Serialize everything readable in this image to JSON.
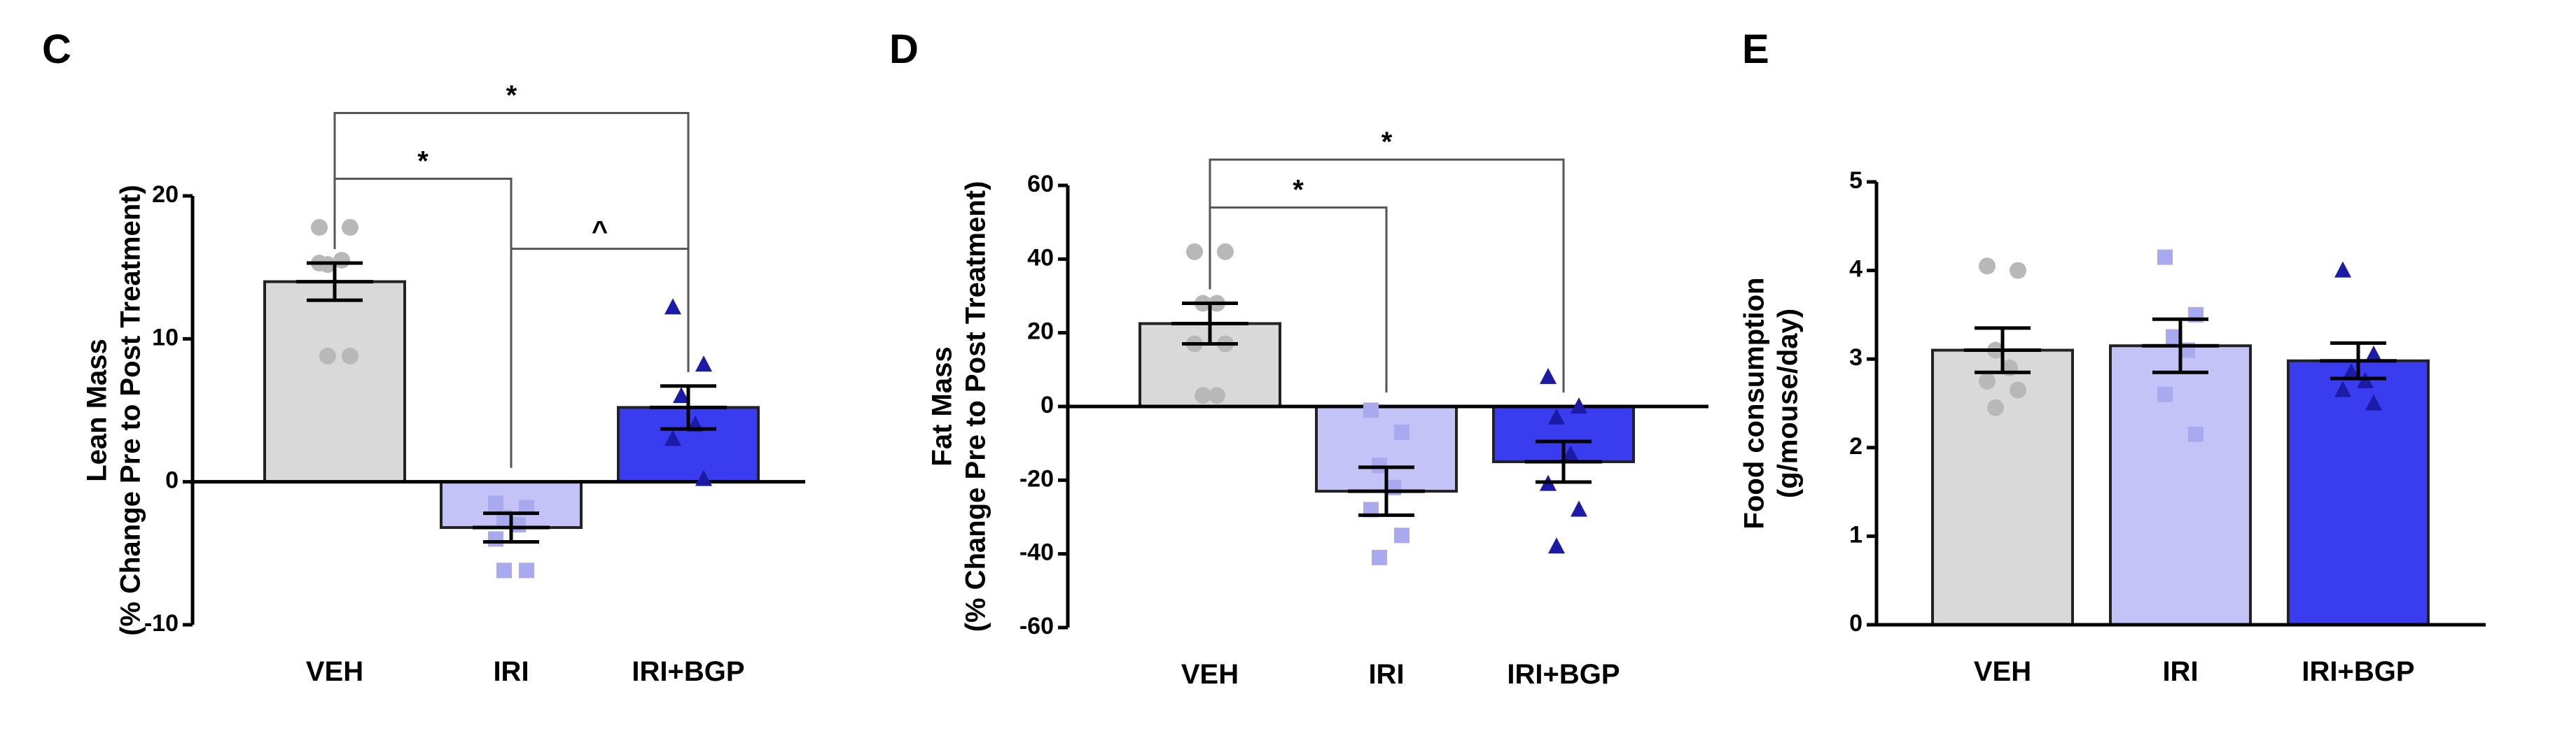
{
  "chart_data": [
    {
      "panel": "C",
      "type": "bar",
      "ylabel": [
        "Lean Mass",
        "(% Change Pre to Post Treatment)"
      ],
      "ylim": [
        -10,
        20
      ],
      "yticks": [
        -10,
        0,
        10,
        20
      ],
      "categories": [
        "VEH",
        "IRI",
        "IRI+BGP"
      ],
      "colors": [
        "#d9d9d9",
        "#c3c3f7",
        "#3a3cf0"
      ],
      "point_colors": [
        "#b8b8b8",
        "#a9a9ef",
        "#1b1ba6"
      ],
      "point_shapes": [
        "circle",
        "square",
        "triangle"
      ],
      "values": [
        14,
        -3.2,
        5.2
      ],
      "sem": [
        1.3,
        1.0,
        1.5
      ],
      "points": [
        [
          17.8,
          17.8,
          15.2,
          15.5,
          15.3,
          8.8,
          8.8
        ],
        [
          -1.5,
          -1.8,
          -2.5,
          -3.0,
          -4.0,
          -6.2,
          -6.2
        ],
        [
          12.2,
          8.2,
          6.0,
          4.0,
          3.0,
          0.2
        ]
      ],
      "brackets": [
        {
          "from": 0,
          "to": 1,
          "label": "*",
          "y": 21.2
        },
        {
          "from": 0,
          "to": 2,
          "label": "*",
          "y": 25.8
        },
        {
          "from": 1,
          "to": 2,
          "label": "^",
          "y": 16.3
        }
      ]
    },
    {
      "panel": "D",
      "type": "bar",
      "ylabel": [
        "Fat Mass",
        "(% Change Pre to Post Treatment)"
      ],
      "ylim": [
        -60,
        60
      ],
      "yticks": [
        -60,
        -40,
        -20,
        0,
        20,
        40,
        60
      ],
      "categories": [
        "VEH",
        "IRI",
        "IRI+BGP"
      ],
      "colors": [
        "#d9d9d9",
        "#c3c3f7",
        "#3a3cf0"
      ],
      "point_colors": [
        "#b8b8b8",
        "#a9a9ef",
        "#1b1ba6"
      ],
      "point_shapes": [
        "circle",
        "square",
        "triangle"
      ],
      "values": [
        22.5,
        -23,
        -15
      ],
      "sem": [
        5.5,
        6.5,
        5.5
      ],
      "points": [
        [
          42,
          42,
          28,
          28,
          17,
          17,
          3,
          3
        ],
        [
          -1,
          -7,
          -16,
          -22,
          -28,
          -35,
          -41
        ],
        [
          8,
          0,
          -3,
          -13,
          -21,
          -28,
          -38
        ]
      ],
      "brackets": [
        {
          "from": 0,
          "to": 1,
          "label": "*",
          "y": 54
        },
        {
          "from": 0,
          "to": 2,
          "label": "*",
          "y": 67
        }
      ]
    },
    {
      "panel": "E",
      "type": "bar",
      "ylabel": [
        "Food consumption",
        "(g/mouse/day)"
      ],
      "ylim": [
        0,
        5
      ],
      "yticks": [
        0,
        1,
        2,
        3,
        4,
        5
      ],
      "categories": [
        "VEH",
        "IRI",
        "IRI+BGP"
      ],
      "colors": [
        "#d9d9d9",
        "#c3c3f7",
        "#3a3cf0"
      ],
      "point_colors": [
        "#b8b8b8",
        "#a9a9ef",
        "#1b1ba6"
      ],
      "point_shapes": [
        "circle",
        "square",
        "triangle"
      ],
      "values": [
        3.1,
        3.15,
        2.98
      ],
      "sem": [
        0.25,
        0.3,
        0.2
      ],
      "points": [
        [
          4.05,
          4.0,
          3.1,
          2.9,
          2.75,
          2.65,
          2.45
        ],
        [
          4.15,
          3.5,
          3.25,
          3.1,
          2.6,
          2.15
        ],
        [
          4.0,
          3.05,
          2.85,
          2.75,
          2.65,
          2.5
        ]
      ],
      "brackets": []
    }
  ]
}
